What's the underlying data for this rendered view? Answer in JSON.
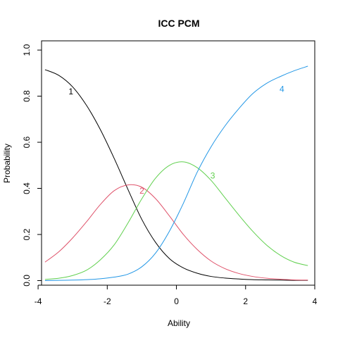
{
  "chart_data": {
    "type": "line",
    "title": "ICC PCM",
    "xlabel": "Ability",
    "ylabel": "Probability",
    "xlim": [
      -3.9,
      4.0
    ],
    "ylim": [
      -0.02,
      1.04
    ],
    "xticks": [
      -4,
      -2,
      0,
      2,
      4
    ],
    "xtick_labels": [
      "-4",
      "-2",
      "0",
      "2",
      "4"
    ],
    "yticks": [
      0.0,
      0.2,
      0.4,
      0.6,
      0.8,
      1.0
    ],
    "ytick_labels": [
      "0.0",
      "0.2",
      "0.4",
      "0.6",
      "0.8",
      "1.0"
    ],
    "grid": false,
    "legend": "none",
    "x": [
      -3.8,
      -3.4,
      -3.0,
      -2.6,
      -2.2,
      -1.8,
      -1.4,
      -1.0,
      -0.6,
      -0.2,
      0.2,
      0.6,
      1.0,
      1.4,
      1.8,
      2.2,
      2.6,
      3.0,
      3.4,
      3.8
    ],
    "series": [
      {
        "name": "1",
        "color": "#000000",
        "label_at": [
          -3.05,
          0.82
        ],
        "values": [
          0.915,
          0.89,
          0.84,
          0.76,
          0.655,
          0.53,
          0.395,
          0.265,
          0.165,
          0.095,
          0.055,
          0.032,
          0.018,
          0.011,
          0.007,
          0.004,
          0.003,
          0.002,
          0.001,
          0.001
        ]
      },
      {
        "name": "2",
        "color": "#DF536B",
        "label_at": [
          -1.0,
          0.39
        ],
        "values": [
          0.08,
          0.125,
          0.185,
          0.255,
          0.33,
          0.39,
          0.415,
          0.405,
          0.355,
          0.28,
          0.2,
          0.135,
          0.085,
          0.052,
          0.031,
          0.018,
          0.01,
          0.006,
          0.003,
          0.002
        ]
      },
      {
        "name": "3",
        "color": "#61D04F",
        "label_at": [
          1.05,
          0.455
        ],
        "values": [
          0.005,
          0.01,
          0.022,
          0.045,
          0.09,
          0.155,
          0.25,
          0.355,
          0.445,
          0.5,
          0.515,
          0.49,
          0.435,
          0.36,
          0.285,
          0.215,
          0.155,
          0.11,
          0.08,
          0.065
        ]
      },
      {
        "name": "4",
        "color": "#2297E6",
        "label_at": [
          3.05,
          0.83
        ],
        "values": [
          0.0,
          0.001,
          0.002,
          0.004,
          0.008,
          0.015,
          0.028,
          0.06,
          0.12,
          0.215,
          0.335,
          0.47,
          0.58,
          0.67,
          0.745,
          0.81,
          0.855,
          0.885,
          0.91,
          0.93
        ]
      }
    ]
  }
}
